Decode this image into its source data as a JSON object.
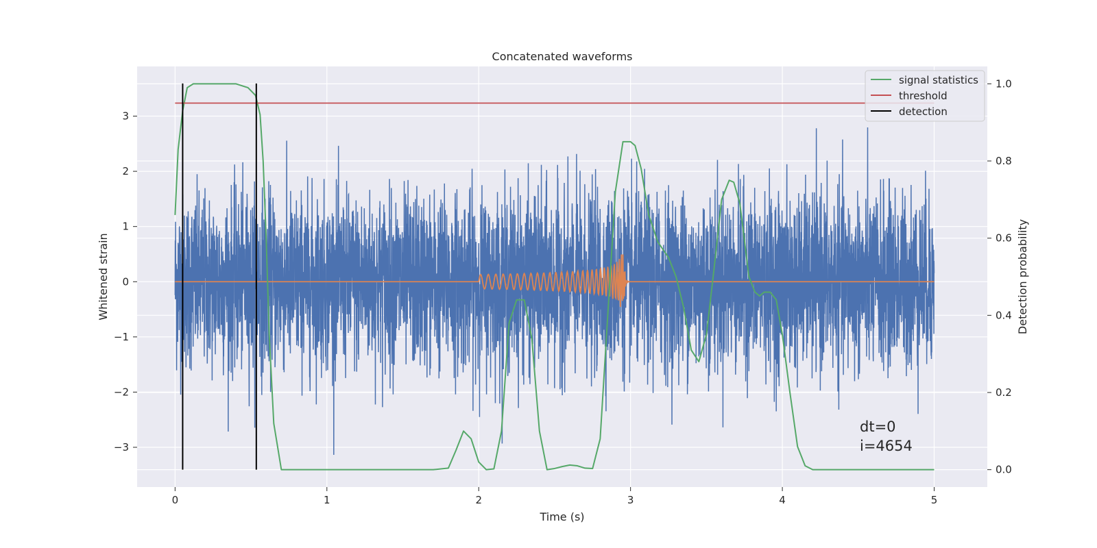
{
  "chart_data": {
    "type": "line",
    "title": "Concatenated waveforms",
    "xlabel": "Time (s)",
    "ylabel": "Whitened strain",
    "y2label": "Detection probability",
    "xlim": [
      -0.25,
      5.35
    ],
    "ylim": [
      -3.72,
      3.9
    ],
    "y2lim": [
      -0.045,
      1.045
    ],
    "x_ticks": [
      0,
      1,
      2,
      3,
      4,
      5
    ],
    "y_ticks": [
      -3,
      -2,
      -1,
      0,
      1,
      2,
      3
    ],
    "y2_ticks": [
      0.0,
      0.2,
      0.4,
      0.6,
      0.8,
      1.0
    ],
    "grid": true,
    "legend_position": "top-right",
    "legend": [
      "signal statistics",
      "threshold",
      "detection"
    ],
    "annotations": [
      "dt=0",
      "i=4654"
    ],
    "colors": {
      "strain": "#4c72b0",
      "template": "#dd8452",
      "signal_statistics": "#55a868",
      "threshold": "#c44e52",
      "detection": "#000000",
      "plot_background": "#eaeaf2",
      "grid": "#ffffff"
    },
    "series": [
      {
        "name": "signal statistics",
        "axis": "right",
        "x": [
          0.0,
          0.02,
          0.05,
          0.08,
          0.12,
          0.2,
          0.3,
          0.4,
          0.48,
          0.53,
          0.56,
          0.58,
          0.6,
          0.62,
          0.65,
          0.7,
          0.8,
          1.0,
          1.2,
          1.4,
          1.6,
          1.7,
          1.8,
          1.85,
          1.9,
          1.95,
          2.0,
          2.05,
          2.1,
          2.15,
          2.2,
          2.25,
          2.3,
          2.35,
          2.4,
          2.45,
          2.5,
          2.55,
          2.6,
          2.65,
          2.7,
          2.75,
          2.8,
          2.85,
          2.9,
          2.95,
          3.0,
          3.03,
          3.07,
          3.12,
          3.18,
          3.25,
          3.3,
          3.35,
          3.4,
          3.45,
          3.5,
          3.55,
          3.6,
          3.65,
          3.68,
          3.72,
          3.78,
          3.82,
          3.85,
          3.88,
          3.92,
          3.96,
          4.0,
          4.05,
          4.1,
          4.15,
          4.2,
          4.3,
          4.5,
          4.7,
          5.0
        ],
        "values": [
          0.66,
          0.83,
          0.93,
          0.99,
          1.0,
          1.0,
          1.0,
          1.0,
          0.99,
          0.97,
          0.92,
          0.8,
          0.6,
          0.35,
          0.12,
          0.0,
          0.0,
          0.0,
          0.0,
          0.0,
          0.0,
          0.0,
          0.004,
          0.05,
          0.1,
          0.08,
          0.02,
          0.0,
          0.002,
          0.1,
          0.38,
          0.44,
          0.44,
          0.34,
          0.1,
          0.0,
          0.003,
          0.008,
          0.012,
          0.01,
          0.004,
          0.003,
          0.08,
          0.4,
          0.72,
          0.85,
          0.85,
          0.84,
          0.78,
          0.66,
          0.59,
          0.55,
          0.5,
          0.42,
          0.31,
          0.28,
          0.35,
          0.52,
          0.7,
          0.75,
          0.745,
          0.69,
          0.5,
          0.46,
          0.45,
          0.46,
          0.46,
          0.44,
          0.35,
          0.2,
          0.06,
          0.01,
          0.0,
          0.0,
          0.0,
          0.0,
          0.0
        ]
      },
      {
        "name": "threshold",
        "axis": "right",
        "x": [
          0.0,
          5.0
        ],
        "values": [
          0.95,
          0.95
        ]
      },
      {
        "name": "detection",
        "axis": "right",
        "type": "vertical-lines",
        "x": [
          0.05,
          0.535
        ]
      }
    ]
  }
}
